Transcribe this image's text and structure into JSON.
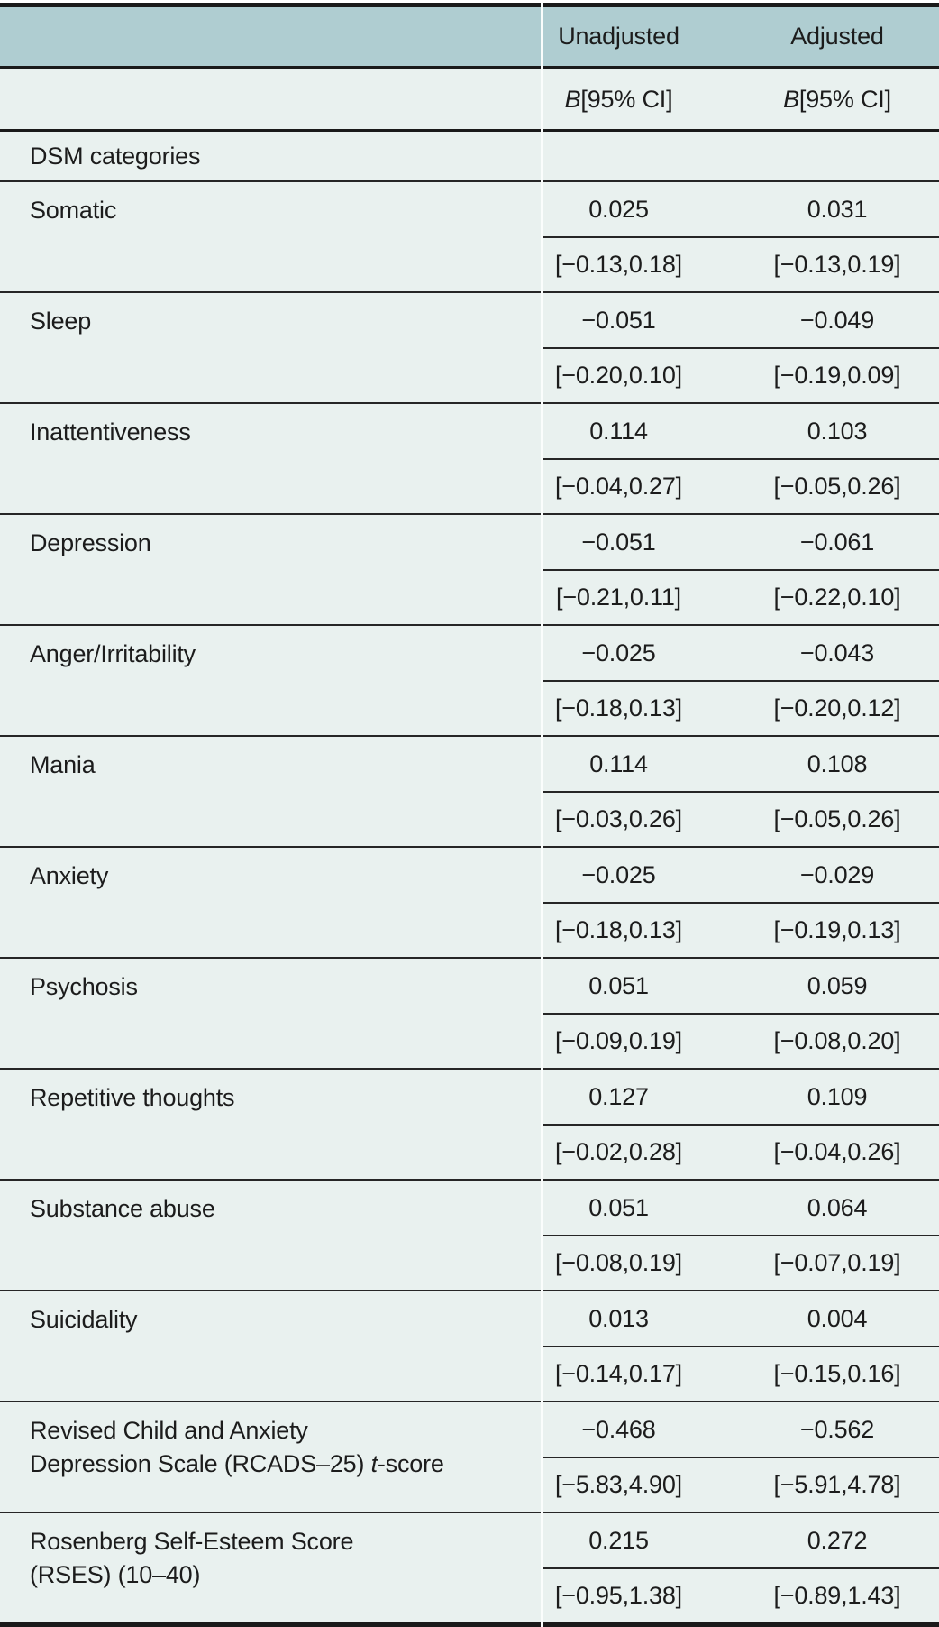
{
  "page": {
    "background": "#ffffff"
  },
  "colors": {
    "header-bg": "#afcdd1",
    "body-bg": "#e9f1ef",
    "rule-heavy": "#1a1a1a",
    "rule-light": "#262626",
    "column-gap-line": "#fafdfc",
    "text": "#1c1c1c"
  },
  "table": {
    "column_headers": [
      "Unadjusted",
      "Adjusted"
    ],
    "subheader": [
      {
        "t": "B",
        "i": true
      },
      {
        "t": " [95% CI]"
      }
    ],
    "section_header": "DSM categories",
    "rows": [
      {
        "label": [
          {
            "t": "Somatic"
          }
        ],
        "unadjusted": {
          "estimate": "0.025",
          "ci": "[−0.13,0.18]"
        },
        "adjusted": {
          "estimate": "0.031",
          "ci": "[−0.13,0.19]"
        }
      },
      {
        "label": [
          {
            "t": "Sleep"
          }
        ],
        "unadjusted": {
          "estimate": "−0.051",
          "ci": "[−0.20,0.10]"
        },
        "adjusted": {
          "estimate": "−0.049",
          "ci": "[−0.19,0.09]"
        }
      },
      {
        "label": [
          {
            "t": "Inattentiveness"
          }
        ],
        "unadjusted": {
          "estimate": "0.114",
          "ci": "[−0.04,0.27]"
        },
        "adjusted": {
          "estimate": "0.103",
          "ci": "[−0.05,0.26]"
        }
      },
      {
        "label": [
          {
            "t": "Depression"
          }
        ],
        "unadjusted": {
          "estimate": "−0.051",
          "ci": "[−0.21,0.11]"
        },
        "adjusted": {
          "estimate": "−0.061",
          "ci": "[−0.22,0.10]"
        }
      },
      {
        "label": [
          {
            "t": "Anger/Irritability"
          }
        ],
        "unadjusted": {
          "estimate": "−0.025",
          "ci": "[−0.18,0.13]"
        },
        "adjusted": {
          "estimate": "−0.043",
          "ci": "[−0.20,0.12]"
        }
      },
      {
        "label": [
          {
            "t": "Mania"
          }
        ],
        "unadjusted": {
          "estimate": "0.114",
          "ci": "[−0.03,0.26]"
        },
        "adjusted": {
          "estimate": "0.108",
          "ci": "[−0.05,0.26]"
        }
      },
      {
        "label": [
          {
            "t": "Anxiety"
          }
        ],
        "unadjusted": {
          "estimate": "−0.025",
          "ci": "[−0.18,0.13]"
        },
        "adjusted": {
          "estimate": "−0.029",
          "ci": "[−0.19,0.13]"
        }
      },
      {
        "label": [
          {
            "t": "Psychosis"
          }
        ],
        "unadjusted": {
          "estimate": "0.051",
          "ci": "[−0.09,0.19]"
        },
        "adjusted": {
          "estimate": "0.059",
          "ci": "[−0.08,0.20]"
        }
      },
      {
        "label": [
          {
            "t": "Repetitive thoughts"
          }
        ],
        "unadjusted": {
          "estimate": "0.127",
          "ci": "[−0.02,0.28]"
        },
        "adjusted": {
          "estimate": "0.109",
          "ci": "[−0.04,0.26]"
        }
      },
      {
        "label": [
          {
            "t": "Substance abuse"
          }
        ],
        "unadjusted": {
          "estimate": "0.051",
          "ci": "[−0.08,0.19]"
        },
        "adjusted": {
          "estimate": "0.064",
          "ci": "[−0.07,0.19]"
        }
      },
      {
        "label": [
          {
            "t": "Suicidality"
          }
        ],
        "unadjusted": {
          "estimate": "0.013",
          "ci": "[−0.14,0.17]"
        },
        "adjusted": {
          "estimate": "0.004",
          "ci": "[−0.15,0.16]"
        }
      },
      {
        "label": [
          {
            "t": "Revised Child and Anxiety"
          },
          {
            "br": true
          },
          {
            "t": "Depression Scale (RCADS–25) "
          },
          {
            "t": "t",
            "i": true
          },
          {
            "t": "-score"
          }
        ],
        "unadjusted": {
          "estimate": "−0.468",
          "ci": "[−5.83,4.90]"
        },
        "adjusted": {
          "estimate": "−0.562",
          "ci": "[−5.91,4.78]"
        }
      },
      {
        "label": [
          {
            "t": "Rosenberg Self-Esteem Score"
          },
          {
            "br": true
          },
          {
            "t": "(RSES) (10–40)"
          }
        ],
        "unadjusted": {
          "estimate": "0.215",
          "ci": "[−0.95,1.38]"
        },
        "adjusted": {
          "estimate": "0.272",
          "ci": "[−0.89,1.43]"
        }
      }
    ]
  }
}
